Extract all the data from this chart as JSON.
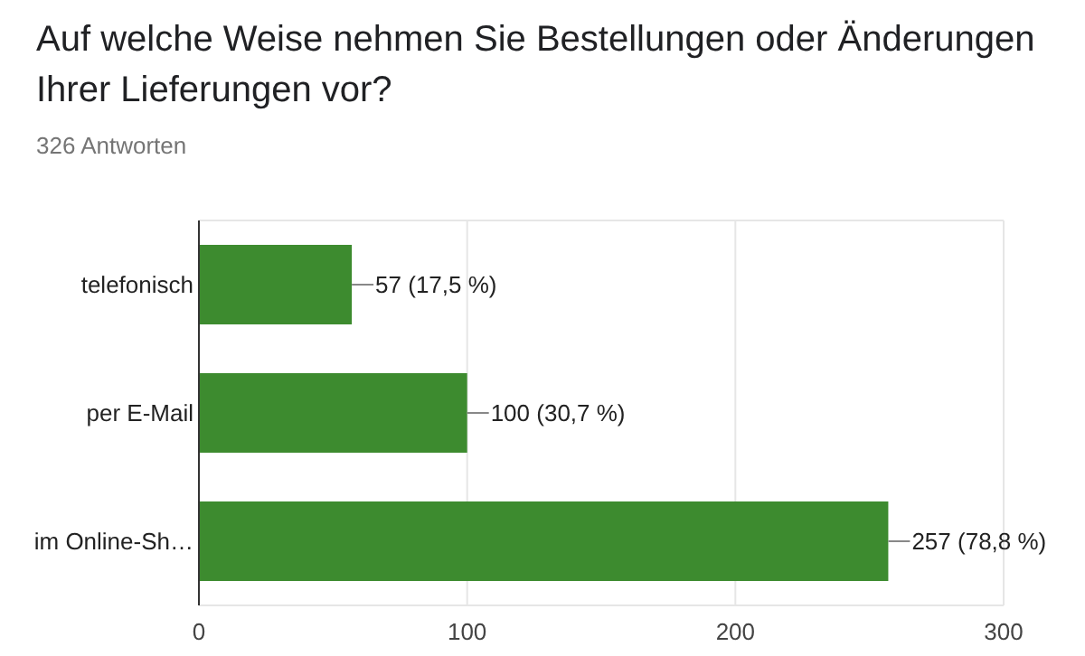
{
  "chart_data": {
    "type": "bar",
    "orientation": "horizontal",
    "title": "Auf welche Weise nehmen Sie Bestellungen oder Änderungen Ihrer Lieferungen vor?",
    "subtitle": "326 Antworten",
    "categories": [
      "telefonisch",
      "per E-Mail",
      "im Online-Sh…"
    ],
    "values": [
      57,
      100,
      257
    ],
    "value_labels": [
      "57 (17,5 %)",
      "100 (30,7 %)",
      "257 (78,8 %)"
    ],
    "color": "#3d8b2f",
    "xlim": [
      0,
      300
    ],
    "xticks": [
      0,
      100,
      200,
      300
    ],
    "grid": "x"
  }
}
